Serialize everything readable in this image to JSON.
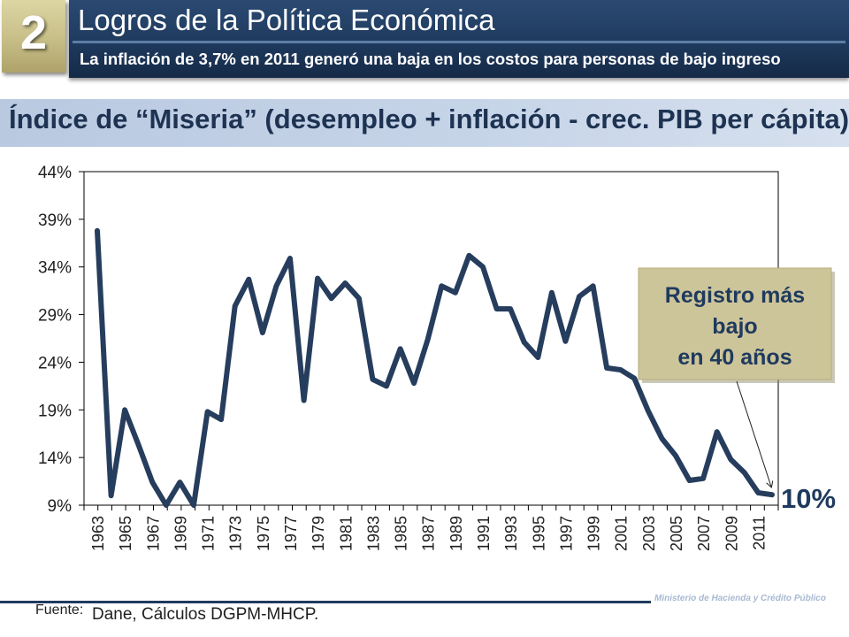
{
  "badge_number": "2",
  "header": {
    "title": "Logros de la Política Económica",
    "subtitle": "La inflación de 3,7% en 2011 generó una baja en los costos para personas de bajo ingreso"
  },
  "chart_title": "Índice de “Miseria” (desempleo + inflación - crec. PIB per cápita)",
  "colors": {
    "line": "#263d5d",
    "callout_fill": "#cdc59a",
    "callout_text": "#1f3a5e",
    "header": "#1f3a5e"
  },
  "chart_data": {
    "type": "line",
    "title": "Índice de “Miseria” (desempleo + inflación - crec. PIB per cápita)",
    "xlabel": "",
    "ylabel": "",
    "grid": false,
    "x": [
      1963,
      1964,
      1965,
      1966,
      1967,
      1968,
      1969,
      1970,
      1971,
      1972,
      1973,
      1974,
      1975,
      1976,
      1977,
      1978,
      1979,
      1980,
      1981,
      1982,
      1983,
      1984,
      1985,
      1986,
      1987,
      1988,
      1989,
      1990,
      1991,
      1992,
      1993,
      1994,
      1995,
      1996,
      1997,
      1998,
      1999,
      2000,
      2001,
      2002,
      2003,
      2004,
      2005,
      2006,
      2007,
      2008,
      2009,
      2010,
      2011,
      2012
    ],
    "values": [
      37.8,
      10.0,
      19.0,
      15.3,
      11.4,
      9.0,
      11.4,
      9.0,
      18.8,
      18.0,
      29.9,
      32.7,
      27.1,
      32.0,
      34.9,
      20.0,
      32.8,
      30.7,
      32.3,
      30.7,
      22.2,
      21.5,
      25.4,
      21.8,
      26.4,
      32.0,
      31.3,
      35.2,
      34.0,
      29.6,
      29.6,
      26.1,
      24.5,
      31.3,
      26.2,
      30.9,
      32.0,
      23.4,
      23.2,
      22.3,
      18.9,
      16.0,
      14.2,
      11.6,
      11.8,
      16.7,
      13.8,
      12.4,
      10.3,
      10.1
    ],
    "tick_labels": [
      "1963",
      "1965",
      "1967",
      "1969",
      "1971",
      "1973",
      "1975",
      "1977",
      "1979",
      "1981",
      "1983",
      "1985",
      "1987",
      "1989",
      "1991",
      "1993",
      "1995",
      "1997",
      "1999",
      "2001",
      "2003",
      "2005",
      "2007",
      "2009",
      "2011"
    ],
    "y_ticks": [
      "9%",
      "14%",
      "19%",
      "24%",
      "29%",
      "34%",
      "39%",
      "44%"
    ],
    "ylim": [
      9,
      44
    ],
    "callout": {
      "lines": [
        "Registro más",
        "bajo",
        "en 40 años"
      ]
    },
    "last_value_label": "10%"
  },
  "footer": {
    "source_label": "Fuente:",
    "source": "Dane, Cálculos DGPM-MHCP.",
    "ministry": "Ministerio de Hacienda y Crédito Público"
  }
}
